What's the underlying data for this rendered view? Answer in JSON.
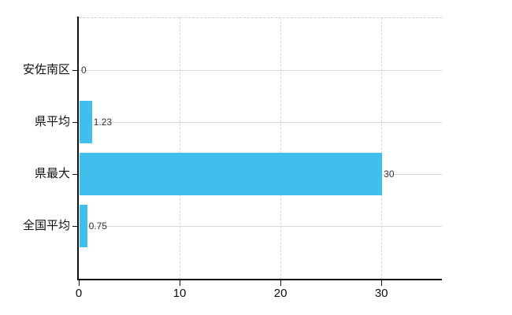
{
  "chart_data": {
    "type": "bar",
    "orientation": "horizontal",
    "title": "",
    "categories": [
      "安佐南区",
      "県平均",
      "県最大",
      "全国平均"
    ],
    "values": [
      0,
      1.23,
      30,
      0.75
    ],
    "value_labels": [
      "0",
      "1.23",
      "30",
      "0.75"
    ],
    "x_ticks": [
      0,
      10,
      20,
      30
    ],
    "x_tick_labels": [
      "0",
      "10",
      "20",
      "30"
    ],
    "xlim": [
      0,
      36
    ],
    "grid": "on",
    "legend_position": "none",
    "colors": {
      "bar": "#41bfec",
      "grid_line": "#d4dad4",
      "plot_top_border": "#d0d0d0",
      "axis": "#111111",
      "category_label": "#111111",
      "x_tick_label": "#111111",
      "value_label": "#333333",
      "background": "#ffffff"
    }
  }
}
